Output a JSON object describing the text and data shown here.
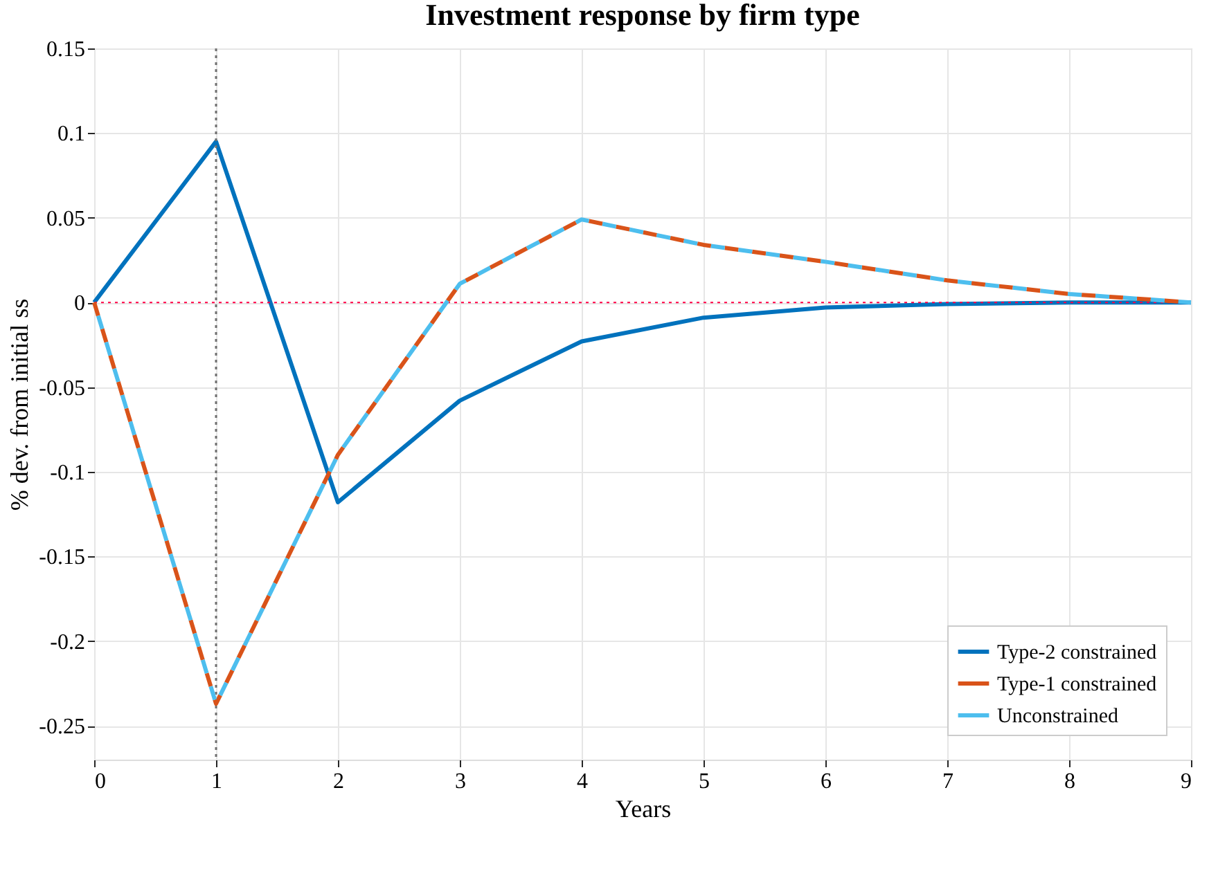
{
  "chart_data": {
    "type": "line",
    "title": "Investment response by firm type",
    "xlabel": "Years",
    "ylabel": "% dev. from initial ss",
    "x": [
      0,
      1,
      2,
      3,
      4,
      5,
      6,
      7,
      8,
      9
    ],
    "series": [
      {
        "name": "Type-2 constrained",
        "color": "#0072bd",
        "line_style": "solid",
        "values": [
          0,
          0.095,
          -0.118,
          -0.058,
          -0.023,
          -0.009,
          -0.003,
          -0.001,
          0,
          0
        ]
      },
      {
        "name": "Type-1 constrained",
        "color": "#d95319",
        "line_style": "dashed",
        "values": [
          0,
          -0.237,
          -0.09,
          0.011,
          0.049,
          0.034,
          0.024,
          0.013,
          0.005,
          0
        ]
      },
      {
        "name": "Unconstrained",
        "color": "#4dbeee",
        "line_style": "dashed",
        "values": [
          0,
          -0.237,
          -0.09,
          0.011,
          0.049,
          0.034,
          0.024,
          0.013,
          0.005,
          0
        ]
      }
    ],
    "xlim": [
      0,
      9
    ],
    "xticks": [
      0,
      1,
      2,
      3,
      4,
      5,
      6,
      7,
      8,
      9
    ],
    "ylim": [
      -0.27,
      0.15
    ],
    "yticks": [
      -0.25,
      -0.2,
      -0.15,
      -0.1,
      -0.05,
      0,
      0.05,
      0.1,
      0.15
    ],
    "ref_lines": [
      {
        "axis": "x",
        "value": 1,
        "color": "#707070",
        "line_style": "dotted"
      },
      {
        "axis": "y",
        "value": 0,
        "color": "#ff0044",
        "line_style": "dotted"
      }
    ],
    "grid": true,
    "legend": "bottom right",
    "marker": "none"
  }
}
